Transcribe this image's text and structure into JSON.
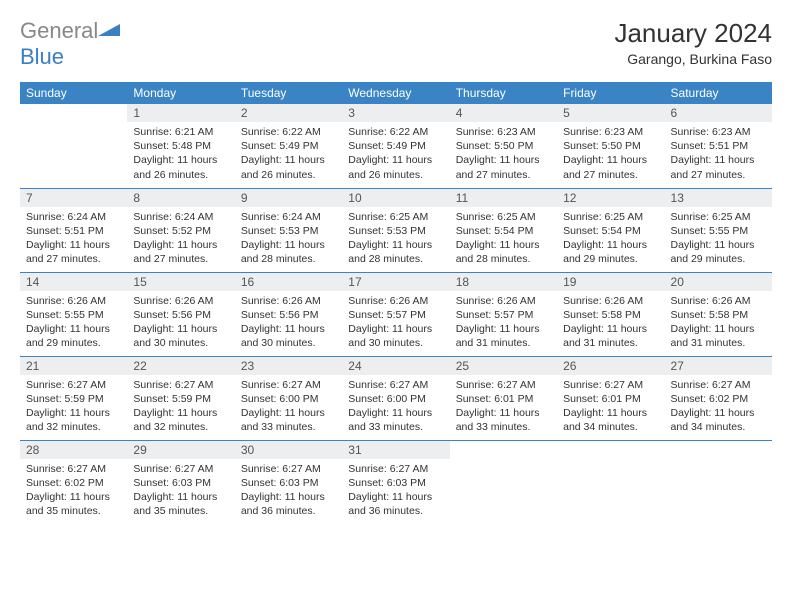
{
  "brand": {
    "part1": "General",
    "part2": "Blue"
  },
  "title": "January 2024",
  "location": "Garango, Burkina Faso",
  "colors": {
    "header_bg": "#3a84c5",
    "header_text": "#ffffff",
    "daynum_bg": "#eceef0",
    "rule": "#3a84c5"
  },
  "weekdays": [
    "Sunday",
    "Monday",
    "Tuesday",
    "Wednesday",
    "Thursday",
    "Friday",
    "Saturday"
  ],
  "first_weekday_offset": 1,
  "days": [
    {
      "n": 1,
      "sr": "6:21 AM",
      "ss": "5:48 PM",
      "dl": "11 hours and 26 minutes."
    },
    {
      "n": 2,
      "sr": "6:22 AM",
      "ss": "5:49 PM",
      "dl": "11 hours and 26 minutes."
    },
    {
      "n": 3,
      "sr": "6:22 AM",
      "ss": "5:49 PM",
      "dl": "11 hours and 26 minutes."
    },
    {
      "n": 4,
      "sr": "6:23 AM",
      "ss": "5:50 PM",
      "dl": "11 hours and 27 minutes."
    },
    {
      "n": 5,
      "sr": "6:23 AM",
      "ss": "5:50 PM",
      "dl": "11 hours and 27 minutes."
    },
    {
      "n": 6,
      "sr": "6:23 AM",
      "ss": "5:51 PM",
      "dl": "11 hours and 27 minutes."
    },
    {
      "n": 7,
      "sr": "6:24 AM",
      "ss": "5:51 PM",
      "dl": "11 hours and 27 minutes."
    },
    {
      "n": 8,
      "sr": "6:24 AM",
      "ss": "5:52 PM",
      "dl": "11 hours and 27 minutes."
    },
    {
      "n": 9,
      "sr": "6:24 AM",
      "ss": "5:53 PM",
      "dl": "11 hours and 28 minutes."
    },
    {
      "n": 10,
      "sr": "6:25 AM",
      "ss": "5:53 PM",
      "dl": "11 hours and 28 minutes."
    },
    {
      "n": 11,
      "sr": "6:25 AM",
      "ss": "5:54 PM",
      "dl": "11 hours and 28 minutes."
    },
    {
      "n": 12,
      "sr": "6:25 AM",
      "ss": "5:54 PM",
      "dl": "11 hours and 29 minutes."
    },
    {
      "n": 13,
      "sr": "6:25 AM",
      "ss": "5:55 PM",
      "dl": "11 hours and 29 minutes."
    },
    {
      "n": 14,
      "sr": "6:26 AM",
      "ss": "5:55 PM",
      "dl": "11 hours and 29 minutes."
    },
    {
      "n": 15,
      "sr": "6:26 AM",
      "ss": "5:56 PM",
      "dl": "11 hours and 30 minutes."
    },
    {
      "n": 16,
      "sr": "6:26 AM",
      "ss": "5:56 PM",
      "dl": "11 hours and 30 minutes."
    },
    {
      "n": 17,
      "sr": "6:26 AM",
      "ss": "5:57 PM",
      "dl": "11 hours and 30 minutes."
    },
    {
      "n": 18,
      "sr": "6:26 AM",
      "ss": "5:57 PM",
      "dl": "11 hours and 31 minutes."
    },
    {
      "n": 19,
      "sr": "6:26 AM",
      "ss": "5:58 PM",
      "dl": "11 hours and 31 minutes."
    },
    {
      "n": 20,
      "sr": "6:26 AM",
      "ss": "5:58 PM",
      "dl": "11 hours and 31 minutes."
    },
    {
      "n": 21,
      "sr": "6:27 AM",
      "ss": "5:59 PM",
      "dl": "11 hours and 32 minutes."
    },
    {
      "n": 22,
      "sr": "6:27 AM",
      "ss": "5:59 PM",
      "dl": "11 hours and 32 minutes."
    },
    {
      "n": 23,
      "sr": "6:27 AM",
      "ss": "6:00 PM",
      "dl": "11 hours and 33 minutes."
    },
    {
      "n": 24,
      "sr": "6:27 AM",
      "ss": "6:00 PM",
      "dl": "11 hours and 33 minutes."
    },
    {
      "n": 25,
      "sr": "6:27 AM",
      "ss": "6:01 PM",
      "dl": "11 hours and 33 minutes."
    },
    {
      "n": 26,
      "sr": "6:27 AM",
      "ss": "6:01 PM",
      "dl": "11 hours and 34 minutes."
    },
    {
      "n": 27,
      "sr": "6:27 AM",
      "ss": "6:02 PM",
      "dl": "11 hours and 34 minutes."
    },
    {
      "n": 28,
      "sr": "6:27 AM",
      "ss": "6:02 PM",
      "dl": "11 hours and 35 minutes."
    },
    {
      "n": 29,
      "sr": "6:27 AM",
      "ss": "6:03 PM",
      "dl": "11 hours and 35 minutes."
    },
    {
      "n": 30,
      "sr": "6:27 AM",
      "ss": "6:03 PM",
      "dl": "11 hours and 36 minutes."
    },
    {
      "n": 31,
      "sr": "6:27 AM",
      "ss": "6:03 PM",
      "dl": "11 hours and 36 minutes."
    }
  ],
  "labels": {
    "sunrise": "Sunrise:",
    "sunset": "Sunset:",
    "daylight": "Daylight:"
  }
}
